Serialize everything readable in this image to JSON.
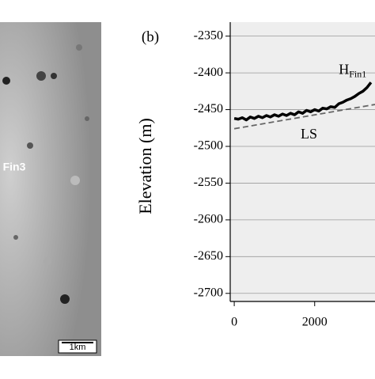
{
  "image_labels": {
    "region": "Fin3",
    "scale": "1km"
  },
  "chart_data": {
    "type": "line",
    "panel_label": "(b)",
    "y_label": "Elevation (m)",
    "xlim": [
      -100,
      3500
    ],
    "xticks": [
      0,
      2000
    ],
    "ylim": [
      -2711,
      -2331
    ],
    "yticks": [
      -2350,
      -2400,
      -2450,
      -2500,
      -2550,
      -2600,
      -2650,
      -2700
    ],
    "grid": true,
    "series": [
      {
        "style": "solid",
        "color": "#000000",
        "x": [
          0,
          100,
          200,
          300,
          400,
          500,
          600,
          700,
          800,
          900,
          1000,
          1100,
          1200,
          1300,
          1400,
          1500,
          1600,
          1700,
          1800,
          1900,
          2000,
          2100,
          2200,
          2300,
          2400,
          2500,
          2600,
          2700,
          2800,
          2900,
          3000,
          3100,
          3200,
          3300,
          3400
        ],
        "values": [
          -2462,
          -2463,
          -2461,
          -2464,
          -2460,
          -2462,
          -2459,
          -2461,
          -2458,
          -2460,
          -2457,
          -2459,
          -2456,
          -2458,
          -2455,
          -2457,
          -2453,
          -2455,
          -2451,
          -2453,
          -2450,
          -2452,
          -2448,
          -2449,
          -2446,
          -2447,
          -2442,
          -2440,
          -2437,
          -2435,
          -2432,
          -2428,
          -2425,
          -2420,
          -2413
        ]
      },
      {
        "style": "dashed",
        "color": "#666666",
        "x": [
          0,
          3500
        ],
        "values": [
          -2476,
          -2443
        ]
      }
    ],
    "annotations": [
      {
        "text": "LS",
        "x": 1650,
        "y": -2485
      },
      {
        "text": "H",
        "subscript": "Fin1",
        "x": 2600,
        "y": -2397
      }
    ]
  }
}
